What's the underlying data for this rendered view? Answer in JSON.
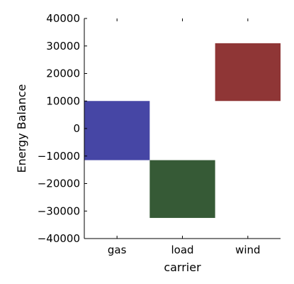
{
  "chart_data": {
    "type": "waterfall",
    "xlabel": "carrier",
    "ylabel": "Energy Balance",
    "ylim": [
      -40000,
      40000
    ],
    "yticks": [
      40000,
      30000,
      20000,
      10000,
      0,
      -10000,
      -20000,
      -30000,
      -40000
    ],
    "ytick_labels": [
      "40000",
      "30000",
      "20000",
      "10000",
      "0",
      "−10000",
      "−20000",
      "−30000",
      "−40000"
    ],
    "categories": [
      "gas",
      "load",
      "wind"
    ],
    "bars": [
      {
        "carrier": "gas",
        "start": -11500,
        "end": 10000,
        "color": "#4646a5"
      },
      {
        "carrier": "load",
        "start": -11500,
        "end": -32500,
        "color": "#365a36"
      },
      {
        "carrier": "wind",
        "start": 10000,
        "end": 31000,
        "color": "#8f3636"
      }
    ],
    "grid": false,
    "legend": "none"
  }
}
